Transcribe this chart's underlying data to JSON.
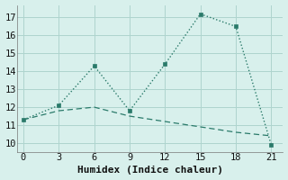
{
  "line1_x": [
    0,
    3,
    6,
    9,
    12,
    15,
    18,
    21
  ],
  "line1_y": [
    11.3,
    12.1,
    14.3,
    11.8,
    14.4,
    17.2,
    16.5,
    9.9
  ],
  "line2_x": [
    0,
    3,
    6,
    9,
    12,
    15,
    18,
    21
  ],
  "line2_y": [
    11.3,
    11.8,
    12.0,
    11.5,
    11.2,
    10.9,
    10.6,
    10.4
  ],
  "line_color": "#2a7a6a",
  "bg_color": "#d8f0ec",
  "grid_color": "#aed4ce",
  "xlabel": "Humidex (Indice chaleur)",
  "xlim": [
    -0.5,
    22
  ],
  "ylim": [
    9.5,
    17.7
  ],
  "xticks": [
    0,
    3,
    6,
    9,
    12,
    15,
    18,
    21
  ],
  "yticks": [
    10,
    11,
    12,
    13,
    14,
    15,
    16,
    17
  ],
  "xlabel_fontsize": 8,
  "tick_fontsize": 7.5
}
